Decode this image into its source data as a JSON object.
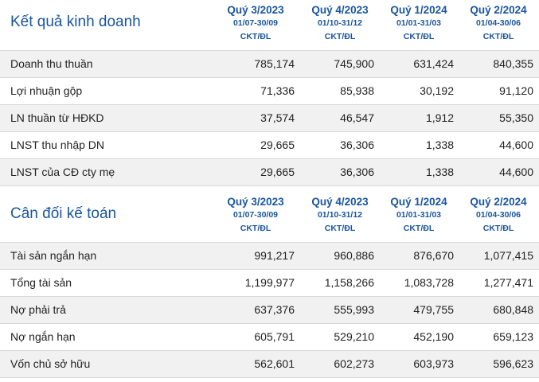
{
  "sections": [
    {
      "title": "Kết quả kinh doanh",
      "columns": [
        {
          "quarter": "Quý 3/2023",
          "dates": "01/07-30/09",
          "unit": "CKT/ĐL"
        },
        {
          "quarter": "Quý 4/2023",
          "dates": "01/10-31/12",
          "unit": "CKT/ĐL"
        },
        {
          "quarter": "Quý 1/2024",
          "dates": "01/01-31/03",
          "unit": "CKT/ĐL"
        },
        {
          "quarter": "Quý 2/2024",
          "dates": "01/04-30/06",
          "unit": "CKT/ĐL"
        }
      ],
      "rows": [
        {
          "label": "Doanh thu thuần",
          "values": [
            "785,174",
            "745,900",
            "631,424",
            "840,355"
          ]
        },
        {
          "label": "Lợi nhuận gộp",
          "values": [
            "71,336",
            "85,938",
            "30,192",
            "91,120"
          ]
        },
        {
          "label": "LN thuần từ HĐKD",
          "values": [
            "37,574",
            "46,547",
            "1,912",
            "55,350"
          ]
        },
        {
          "label": "LNST thu nhập DN",
          "values": [
            "29,665",
            "36,306",
            "1,338",
            "44,600"
          ]
        },
        {
          "label": "LNST của CĐ cty mẹ",
          "values": [
            "29,665",
            "36,306",
            "1,338",
            "44,600"
          ]
        }
      ]
    },
    {
      "title": "Cân đối kế toán",
      "columns": [
        {
          "quarter": "Quý 3/2023",
          "dates": "01/07-30/09",
          "unit": "CKT/ĐL"
        },
        {
          "quarter": "Quý 4/2023",
          "dates": "01/10-31/12",
          "unit": "CKT/ĐL"
        },
        {
          "quarter": "Quý 1/2024",
          "dates": "01/01-31/03",
          "unit": "CKT/ĐL"
        },
        {
          "quarter": "Quý 2/2024",
          "dates": "01/04-30/06",
          "unit": "CKT/ĐL"
        }
      ],
      "rows": [
        {
          "label": "Tài sản ngắn hạn",
          "values": [
            "991,217",
            "960,886",
            "876,670",
            "1,077,415"
          ]
        },
        {
          "label": "Tổng tài sản",
          "values": [
            "1,199,977",
            "1,158,266",
            "1,083,728",
            "1,277,471"
          ]
        },
        {
          "label": "Nợ phải trả",
          "values": [
            "637,376",
            "555,993",
            "479,755",
            "680,848"
          ]
        },
        {
          "label": "Nợ ngắn hạn",
          "values": [
            "605,791",
            "529,210",
            "452,190",
            "659,123"
          ]
        },
        {
          "label": "Vốn chủ sở hữu",
          "values": [
            "562,601",
            "602,273",
            "603,973",
            "596,623"
          ]
        }
      ]
    }
  ]
}
